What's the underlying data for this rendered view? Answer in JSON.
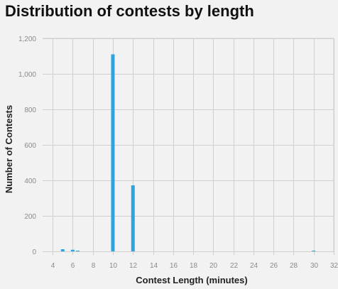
{
  "chart_data": {
    "type": "bar",
    "title": "Distribution of contests by length",
    "xlabel": "Contest Length (minutes)",
    "ylabel": "Number of Contests",
    "xlim": [
      3,
      32
    ],
    "ylim": [
      0,
      1200
    ],
    "x_ticks": [
      4,
      6,
      8,
      10,
      12,
      14,
      16,
      18,
      20,
      22,
      24,
      26,
      28,
      30,
      32
    ],
    "y_ticks": [
      0,
      200,
      400,
      600,
      800,
      1000,
      1200
    ],
    "y_tick_labels": [
      "0",
      "200",
      "400",
      "600",
      "800",
      "1,000",
      "1,200"
    ],
    "grid": true,
    "bar_color": "#2fa3e0",
    "bars": [
      {
        "x": 5,
        "value": 12
      },
      {
        "x": 6,
        "value": 9
      },
      {
        "x": 6.5,
        "value": 3
      },
      {
        "x": 10,
        "value": 1110
      },
      {
        "x": 12,
        "value": 372
      },
      {
        "x": 30,
        "value": 4
      }
    ]
  }
}
